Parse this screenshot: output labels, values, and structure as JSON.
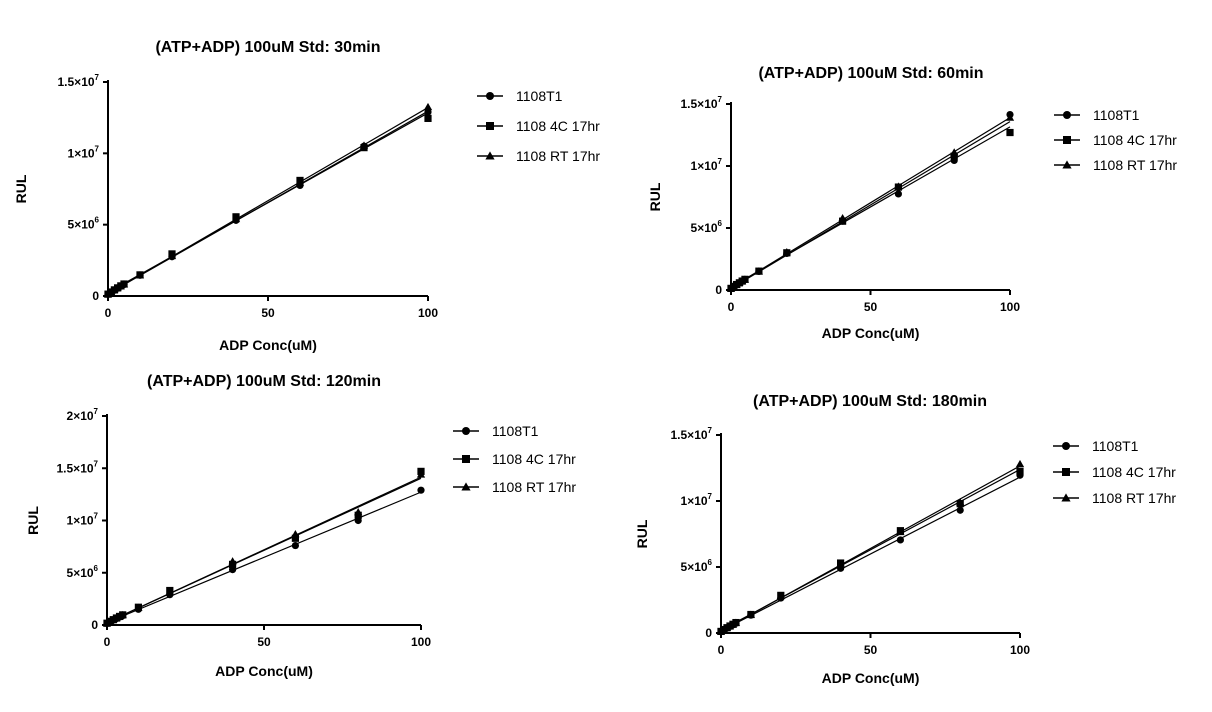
{
  "chart_data": [
    {
      "type": "scatter",
      "title": "(ATP+ADP) 100uM Std: 30min",
      "xlabel": "ADP Conc(uM)",
      "ylabel": "RUL",
      "xlim": [
        0,
        100
      ],
      "ylim": [
        0,
        15000000
      ],
      "x_ticks": [
        "0",
        "50",
        "100"
      ],
      "y_ticks": [
        {
          "base": "0",
          "exp": ""
        },
        {
          "base": "5×10",
          "exp": "6"
        },
        {
          "base": "1×10",
          "exp": "7"
        },
        {
          "base": "1.5×10",
          "exp": "7"
        }
      ],
      "y_tick_values": [
        0,
        5000000,
        10000000,
        15000000
      ],
      "x": [
        0,
        1,
        2,
        3,
        4,
        5,
        10,
        20,
        40,
        60,
        80,
        100
      ],
      "fit_line": true,
      "series": [
        {
          "name": "1108T1",
          "marker": "circle",
          "values": [
            120000,
            260000,
            400000,
            540000,
            680000,
            800000,
            1450000,
            2750000,
            5300000,
            7750000,
            10500000,
            12900000
          ]
        },
        {
          "name": "1108 4C 17hr",
          "marker": "square",
          "values": [
            130000,
            280000,
            430000,
            570000,
            710000,
            840000,
            1480000,
            2950000,
            5550000,
            8100000,
            10400000,
            12450000
          ]
        },
        {
          "name": "1108 RT 17hr",
          "marker": "triangle",
          "values": [
            120000,
            270000,
            420000,
            560000,
            690000,
            820000,
            1450000,
            2800000,
            5400000,
            7950000,
            10550000,
            13250000
          ]
        }
      ]
    },
    {
      "type": "scatter",
      "title": "(ATP+ADP) 100uM Std: 60min",
      "xlabel": "ADP Conc(uM)",
      "ylabel": "RUL",
      "xlim": [
        0,
        100
      ],
      "ylim": [
        0,
        15000000
      ],
      "x_ticks": [
        "0",
        "50",
        "100"
      ],
      "y_ticks": [
        {
          "base": "0",
          "exp": ""
        },
        {
          "base": "5×10",
          "exp": "6"
        },
        {
          "base": "1×10",
          "exp": "7"
        },
        {
          "base": "1.5×10",
          "exp": "7"
        }
      ],
      "y_tick_values": [
        0,
        5000000,
        10000000,
        15000000
      ],
      "x": [
        0,
        1,
        2,
        3,
        4,
        5,
        10,
        20,
        40,
        60,
        80,
        100
      ],
      "fit_line": true,
      "series": [
        {
          "name": "1108T1",
          "marker": "circle",
          "values": [
            120000,
            280000,
            420000,
            560000,
            700000,
            830000,
            1500000,
            2950000,
            5550000,
            7750000,
            10450000,
            14150000
          ]
        },
        {
          "name": "1108 4C 17hr",
          "marker": "square",
          "values": [
            130000,
            290000,
            440000,
            580000,
            720000,
            860000,
            1520000,
            3000000,
            5550000,
            8300000,
            10800000,
            12700000
          ]
        },
        {
          "name": "1108 RT 17hr",
          "marker": "triangle",
          "values": [
            120000,
            280000,
            430000,
            570000,
            710000,
            850000,
            1500000,
            3050000,
            5800000,
            8350000,
            11100000,
            13900000
          ]
        }
      ]
    },
    {
      "type": "scatter",
      "title": "(ATP+ADP) 100uM Std: 120min",
      "xlabel": "ADP Conc(uM)",
      "ylabel": "RUL",
      "xlim": [
        0,
        100
      ],
      "ylim": [
        0,
        20000000
      ],
      "x_ticks": [
        "0",
        "50",
        "100"
      ],
      "y_ticks": [
        {
          "base": "0",
          "exp": ""
        },
        {
          "base": "5×10",
          "exp": "6"
        },
        {
          "base": "1×10",
          "exp": "7"
        },
        {
          "base": "1.5×10",
          "exp": "7"
        },
        {
          "base": "2×10",
          "exp": "7"
        }
      ],
      "y_tick_values": [
        0,
        5000000,
        10000000,
        15000000,
        20000000
      ],
      "x": [
        0,
        1,
        2,
        3,
        4,
        5,
        10,
        20,
        40,
        60,
        80,
        100
      ],
      "fit_line": true,
      "series": [
        {
          "name": "1108T1",
          "marker": "circle",
          "values": [
            150000,
            320000,
            470000,
            610000,
            760000,
            890000,
            1500000,
            2900000,
            5300000,
            7600000,
            10000000,
            12900000
          ]
        },
        {
          "name": "1108 4C 17hr",
          "marker": "square",
          "values": [
            170000,
            350000,
            510000,
            670000,
            820000,
            970000,
            1700000,
            3300000,
            5800000,
            8300000,
            10500000,
            14700000
          ]
        },
        {
          "name": "1108 RT 17hr",
          "marker": "triangle",
          "values": [
            160000,
            340000,
            500000,
            650000,
            800000,
            950000,
            1650000,
            3150000,
            6100000,
            8700000,
            10800000,
            14400000
          ]
        }
      ]
    },
    {
      "type": "scatter",
      "title": "(ATP+ADP) 100uM Std: 180min",
      "xlabel": "ADP Conc(uM)",
      "ylabel": "RUL",
      "xlim": [
        0,
        100
      ],
      "ylim": [
        0,
        15000000
      ],
      "x_ticks": [
        "0",
        "50",
        "100"
      ],
      "y_ticks": [
        {
          "base": "0",
          "exp": ""
        },
        {
          "base": "5×10",
          "exp": "6"
        },
        {
          "base": "1×10",
          "exp": "7"
        },
        {
          "base": "1.5×10",
          "exp": "7"
        }
      ],
      "y_tick_values": [
        0,
        5000000,
        10000000,
        15000000
      ],
      "x": [
        0,
        1,
        2,
        3,
        4,
        5,
        10,
        20,
        40,
        60,
        80,
        100
      ],
      "fit_line": true,
      "series": [
        {
          "name": "1108T1",
          "marker": "circle",
          "values": [
            110000,
            240000,
            370000,
            500000,
            620000,
            740000,
            1350000,
            2650000,
            4900000,
            7050000,
            9300000,
            11950000
          ]
        },
        {
          "name": "1108 4C 17hr",
          "marker": "square",
          "values": [
            120000,
            260000,
            400000,
            530000,
            660000,
            790000,
            1400000,
            2850000,
            5300000,
            7750000,
            9800000,
            12250000
          ]
        },
        {
          "name": "1108 RT 17hr",
          "marker": "triangle",
          "values": [
            115000,
            250000,
            390000,
            520000,
            650000,
            780000,
            1380000,
            2800000,
            5250000,
            7650000,
            9900000,
            12800000
          ]
        }
      ]
    }
  ]
}
